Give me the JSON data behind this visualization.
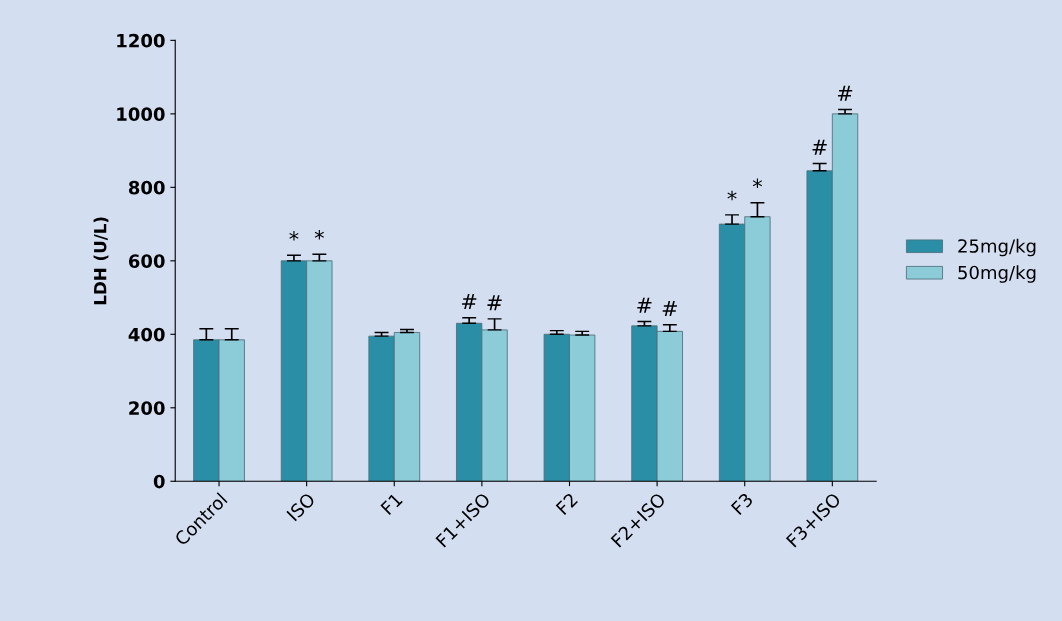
{
  "chart_data": {
    "type": "bar",
    "ylabel": "LDH (U/L)",
    "categories": [
      "Control",
      "ISO",
      "F1",
      "F1+ISO",
      "F2",
      "F2+ISO",
      "F3",
      "F3+ISO"
    ],
    "series": [
      {
        "name": "25mg/kg",
        "color": "#2a8fa6",
        "values": [
          385,
          600,
          395,
          430,
          400,
          423,
          700,
          845
        ],
        "errors": [
          30,
          15,
          10,
          15,
          10,
          12,
          25,
          20
        ],
        "value_labels": [
          null,
          "*",
          null,
          "#",
          null,
          "#",
          "*",
          "#"
        ]
      },
      {
        "name": "50mg/kg",
        "color": "#8ccbd8",
        "values": [
          385,
          600,
          405,
          412,
          398,
          408,
          720,
          1000
        ],
        "errors": [
          30,
          18,
          8,
          30,
          10,
          18,
          38,
          12
        ],
        "value_labels": [
          null,
          "*",
          null,
          "#",
          null,
          "#",
          "*",
          "#"
        ]
      }
    ],
    "ylim": [
      0,
      1200
    ],
    "yticks": [
      0,
      200,
      400,
      600,
      800,
      1000,
      1200
    ],
    "grid": false,
    "legend": "right"
  }
}
